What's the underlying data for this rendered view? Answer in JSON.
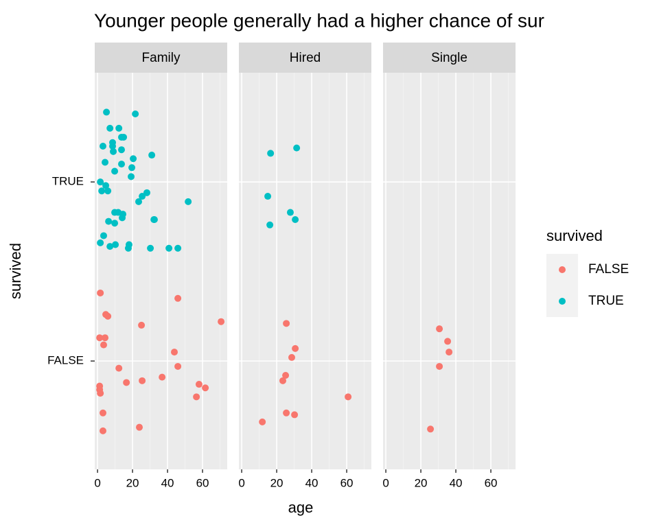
{
  "chart_data": {
    "type": "scatter",
    "title": "Younger people generally had a higher chance of sur",
    "x_label": "age",
    "y_label": "survived",
    "legend_title": "survived",
    "xlim": [
      -1.6,
      74.1
    ],
    "xticks": [
      0,
      20,
      40,
      60
    ],
    "ylim": [
      0.395,
      2.61
    ],
    "yticks": [
      {
        "value": 1,
        "label": "FALSE"
      },
      {
        "value": 2,
        "label": "TRUE"
      }
    ],
    "grid": true,
    "series": [
      {
        "name": "FALSE",
        "color": "#F8766D"
      },
      {
        "name": "TRUE",
        "color": "#00BFC4"
      }
    ],
    "panels": [
      {
        "name": "Family",
        "series": [
          {
            "x": [
              1.6,
              45.9,
              4.7,
              5.9,
              70.6,
              25.1,
              1.2,
              4.3,
              3.5,
              43.9,
              12.2,
              45.9,
              36.9,
              25.5,
              16.5,
              1.2,
              58.0,
              61.6,
              1.2,
              1.6,
              56.5,
              3.1,
              23.9,
              3.1
            ],
            "y": [
              1.38,
              1.35,
              1.26,
              1.25,
              1.22,
              1.2,
              1.13,
              1.13,
              1.09,
              1.05,
              0.96,
              0.97,
              0.91,
              0.89,
              0.88,
              0.86,
              0.87,
              0.85,
              0.84,
              0.82,
              0.8,
              0.71,
              0.63,
              0.61
            ]
          },
          {
            "x": [
              5.1,
              21.6,
              7.1,
              12.2,
              13.7,
              14.9,
              8.6,
              3.1,
              8.6,
              13.7,
              9.0,
              31.0,
              4.3,
              13.7,
              20.4,
              19.6,
              9.8,
              19.2,
              1.6,
              4.7,
              2.4,
              5.9,
              28.2,
              25.5,
              23.5,
              51.8,
              9.8,
              11.8,
              14.5,
              14.1,
              32.2,
              32.5,
              6.3,
              9.8,
              3.5,
              1.6,
              10.2,
              7.1,
              18.0,
              17.6,
              30.2,
              40.8,
              45.9
            ],
            "y": [
              2.39,
              2.38,
              2.3,
              2.3,
              2.25,
              2.25,
              2.22,
              2.2,
              2.2,
              2.18,
              2.17,
              2.15,
              2.11,
              2.1,
              2.13,
              2.08,
              2.06,
              2.03,
              2.0,
              1.98,
              1.95,
              1.95,
              1.94,
              1.92,
              1.89,
              1.89,
              1.83,
              1.83,
              1.82,
              1.8,
              1.79,
              1.79,
              1.78,
              1.77,
              1.7,
              1.66,
              1.65,
              1.64,
              1.65,
              1.63,
              1.63,
              1.63,
              1.63
            ]
          }
        ]
      },
      {
        "name": "Hired",
        "series": [
          {
            "x": [
              25.5,
              30.6,
              28.6,
              25.1,
              23.5,
              60.8,
              25.5,
              30.2,
              11.8
            ],
            "y": [
              1.21,
              1.07,
              1.02,
              0.92,
              0.89,
              0.8,
              0.71,
              0.7,
              0.66
            ]
          },
          {
            "x": [
              16.5,
              31.4,
              14.9,
              27.8,
              30.6,
              16.1
            ],
            "y": [
              2.16,
              2.19,
              1.92,
              1.83,
              1.79,
              1.76
            ]
          }
        ]
      },
      {
        "name": "Single",
        "series": [
          {
            "x": [
              30.6,
              35.3,
              36.1,
              30.6,
              25.5
            ],
            "y": [
              1.18,
              1.11,
              1.05,
              0.97,
              0.62
            ]
          },
          {
            "x": [],
            "y": []
          }
        ]
      }
    ]
  }
}
